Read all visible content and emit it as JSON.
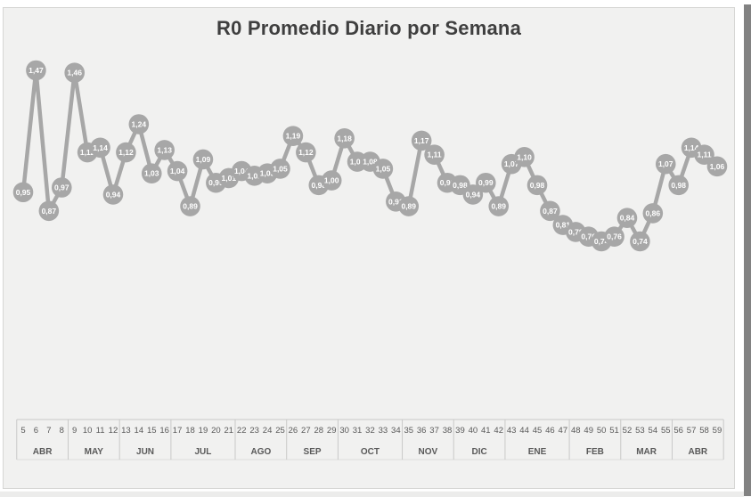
{
  "chart": {
    "title": "R0 Promedio Diario por Semana",
    "series_color": "#a7a7a7",
    "point_label_color": "#ffffff",
    "title_color": "#3f3f3f",
    "axis_text_color": "#595959",
    "axis_line_color": "#c9c9c8",
    "panel_background": "#f1f1f0"
  },
  "chart_data": {
    "type": "line",
    "title": "R0 Promedio Diario por Semana",
    "xlabel": "",
    "ylabel": "",
    "legend": false,
    "grid": false,
    "marker": "circle-with-value-label",
    "ylim": [
      0.6,
      1.6
    ],
    "x_weeks": [
      5,
      6,
      7,
      8,
      9,
      10,
      11,
      12,
      13,
      14,
      15,
      16,
      17,
      18,
      19,
      20,
      21,
      22,
      23,
      24,
      25,
      26,
      27,
      28,
      29,
      30,
      31,
      32,
      33,
      34,
      35,
      36,
      37,
      38,
      39,
      40,
      41,
      42,
      43,
      44,
      45,
      46,
      47,
      48,
      49,
      50,
      51,
      52,
      53,
      54,
      55,
      56,
      57,
      58,
      59
    ],
    "values": [
      0.95,
      1.47,
      0.87,
      0.97,
      1.46,
      1.12,
      1.14,
      0.94,
      1.12,
      1.24,
      1.03,
      1.13,
      1.04,
      0.89,
      1.09,
      0.99,
      1.01,
      1.04,
      1.02,
      1.03,
      1.05,
      1.19,
      1.12,
      0.98,
      1.0,
      1.18,
      1.08,
      1.08,
      1.05,
      0.91,
      0.89,
      1.17,
      1.11,
      0.99,
      0.98,
      0.94,
      0.99,
      0.89,
      1.07,
      1.1,
      0.98,
      0.87,
      0.81,
      0.78,
      0.76,
      0.74,
      0.76,
      0.84,
      0.74,
      0.86,
      1.07,
      0.98,
      1.14,
      1.11,
      1.06
    ],
    "labels": [
      "0,95",
      "1,47",
      "0,87",
      "0,97",
      "1,46",
      "1,12",
      "1,14",
      "0,94",
      "1,12",
      "1,24",
      "1,03",
      "1,13",
      "1,04",
      "0,89",
      "1,09",
      "0,99",
      "1,01",
      "1,04",
      "1,02",
      "1,03",
      "1,05",
      "1,19",
      "1,12",
      "0,98",
      "1,00",
      "1,18",
      "1,08",
      "1,08",
      "1,05",
      "0,91",
      "0,89",
      "1,17",
      "1,11",
      "0,99",
      "0,98",
      "0,94",
      "0,99",
      "0,89",
      "1,07",
      "1,10",
      "0,98",
      "0,87",
      "0,81",
      "0,78",
      "0,76",
      "0,74",
      "0,76",
      "0,84",
      "0,74",
      "0,86",
      "1,07",
      "0,98",
      "1,14",
      "1,11",
      "1,06"
    ],
    "months": [
      {
        "label": "ABR",
        "weeks": [
          5,
          6,
          7,
          8
        ]
      },
      {
        "label": "MAY",
        "weeks": [
          9,
          10,
          11,
          12
        ]
      },
      {
        "label": "JUN",
        "weeks": [
          13,
          14,
          15,
          16
        ]
      },
      {
        "label": "JUL",
        "weeks": [
          17,
          18,
          19,
          20,
          21
        ]
      },
      {
        "label": "AGO",
        "weeks": [
          22,
          23,
          24,
          25
        ]
      },
      {
        "label": "SEP",
        "weeks": [
          26,
          27,
          28,
          29
        ]
      },
      {
        "label": "OCT",
        "weeks": [
          30,
          31,
          32,
          33,
          34
        ]
      },
      {
        "label": "NOV",
        "weeks": [
          35,
          36,
          37,
          38
        ]
      },
      {
        "label": "DIC",
        "weeks": [
          39,
          40,
          41,
          42
        ]
      },
      {
        "label": "ENE",
        "weeks": [
          43,
          44,
          45,
          46,
          47
        ]
      },
      {
        "label": "FEB",
        "weeks": [
          48,
          49,
          50,
          51
        ]
      },
      {
        "label": "MAR",
        "weeks": [
          52,
          53,
          54,
          55
        ]
      },
      {
        "label": "ABR",
        "weeks": [
          56,
          57,
          58,
          59
        ]
      }
    ]
  }
}
